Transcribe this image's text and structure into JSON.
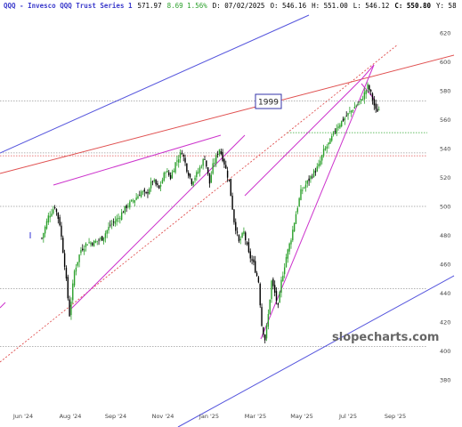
{
  "header": {
    "title": "QQQ - Invesco QQQ Trust Series 1",
    "last": "571.97",
    "change": "8.69 1.56%",
    "date": "D: 07/02/2025",
    "open": "O: 546.16",
    "high": "H: 551.00",
    "low": "L: 546.12",
    "close": "C: 550.80",
    "y_partial": "Y: 58"
  },
  "watermark": "slopecharts.com",
  "annotation": "1999",
  "colors": {
    "up": "#2ca02c",
    "down": "#000000",
    "trend_blue": "#5555dd",
    "trend_red": "#e05050",
    "trend_magenta": "#cc33cc",
    "grid_dotted": "#999999",
    "green_level": "#33aa33"
  },
  "chart_data": {
    "type": "candlestick",
    "x_tick_labels": [
      "Jun '24",
      "Aug '24",
      "Sep '24",
      "Nov '24",
      "Jan '25",
      "Mar '25",
      "May '25",
      "Jul '25",
      "Sep '25"
    ],
    "y_ticks": [
      380,
      400,
      420,
      440,
      460,
      480,
      500,
      520,
      540,
      560,
      580,
      600,
      620
    ],
    "ylim": [
      366,
      628
    ],
    "price_path": [
      [
        0,
        478
      ],
      [
        4,
        493
      ],
      [
        8,
        500
      ],
      [
        11,
        488
      ],
      [
        14,
        460
      ],
      [
        17,
        425
      ],
      [
        20,
        455
      ],
      [
        24,
        470
      ],
      [
        28,
        475
      ],
      [
        32,
        475
      ],
      [
        37,
        478
      ],
      [
        42,
        487
      ],
      [
        47,
        492
      ],
      [
        52,
        500
      ],
      [
        57,
        505
      ],
      [
        61,
        510
      ],
      [
        64,
        508
      ],
      [
        68,
        518
      ],
      [
        72,
        512
      ],
      [
        76,
        525
      ],
      [
        79,
        520
      ],
      [
        82,
        530
      ],
      [
        86,
        538
      ],
      [
        89,
        526
      ],
      [
        92,
        517
      ],
      [
        96,
        524
      ],
      [
        100,
        534
      ],
      [
        103,
        516
      ],
      [
        105,
        528
      ],
      [
        109,
        540
      ],
      [
        112,
        530
      ],
      [
        115,
        517
      ],
      [
        118,
        490
      ],
      [
        121,
        475
      ],
      [
        124,
        482
      ],
      [
        127,
        467
      ],
      [
        130,
        460
      ],
      [
        133,
        448
      ],
      [
        135,
        418
      ],
      [
        137,
        408
      ],
      [
        139,
        425
      ],
      [
        141,
        448
      ],
      [
        143,
        440
      ],
      [
        145,
        430
      ],
      [
        147,
        448
      ],
      [
        150,
        465
      ],
      [
        153,
        478
      ],
      [
        156,
        495
      ],
      [
        159,
        510
      ],
      [
        162,
        515
      ],
      [
        166,
        522
      ],
      [
        170,
        528
      ],
      [
        173,
        538
      ],
      [
        177,
        545
      ],
      [
        181,
        555
      ],
      [
        185,
        560
      ],
      [
        189,
        565
      ],
      [
        193,
        570
      ],
      [
        196,
        573
      ],
      [
        198,
        578
      ],
      [
        200,
        583
      ],
      [
        202,
        578
      ],
      [
        205,
        566
      ],
      [
        207,
        567
      ]
    ],
    "horizontal_levels": [
      {
        "value": 573,
        "color": "#999999",
        "style": "dotted"
      },
      {
        "value": 551,
        "color": "#33aa33",
        "style": "dotted"
      },
      {
        "value": 537,
        "color": "#999999",
        "style": "dotted"
      },
      {
        "value": 535,
        "color": "#e05050",
        "style": "dotted"
      },
      {
        "value": 500,
        "color": "#999999",
        "style": "dotted"
      },
      {
        "value": 443,
        "color": "#999999",
        "style": "dotted"
      },
      {
        "value": 403,
        "color": "#999999",
        "style": "dotted"
      }
    ]
  }
}
